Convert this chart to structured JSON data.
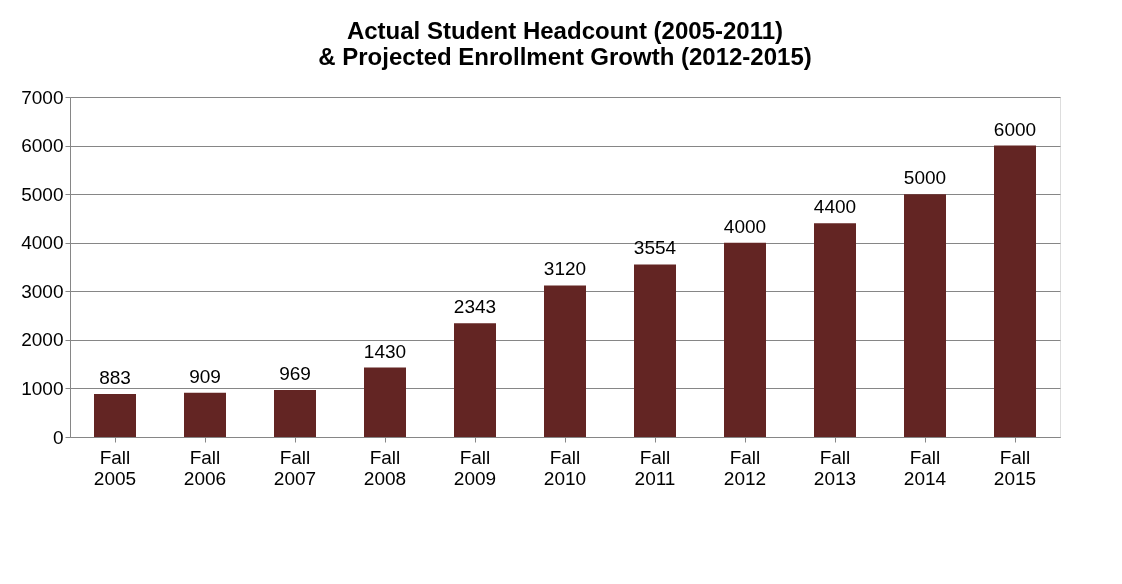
{
  "chart_data": {
    "type": "bar",
    "title": "Actual Student Headcount (2005-2011)\n& Projected Enrollment Growth (2012-2015)",
    "categories": [
      "Fall 2005",
      "Fall 2006",
      "Fall 2007",
      "Fall 2008",
      "Fall 2009",
      "Fall 2010",
      "Fall 2011",
      "Fall 2012",
      "Fall 2013",
      "Fall 2014",
      "Fall 2015"
    ],
    "values": [
      883,
      909,
      969,
      1430,
      2343,
      3120,
      3554,
      4000,
      4400,
      5000,
      6000
    ],
    "color": "#632523",
    "ylim": [
      0,
      7000
    ],
    "yticks": [
      0,
      1000,
      2000,
      3000,
      4000,
      5000,
      6000,
      7000
    ],
    "grid": "y",
    "data_labels": true
  }
}
